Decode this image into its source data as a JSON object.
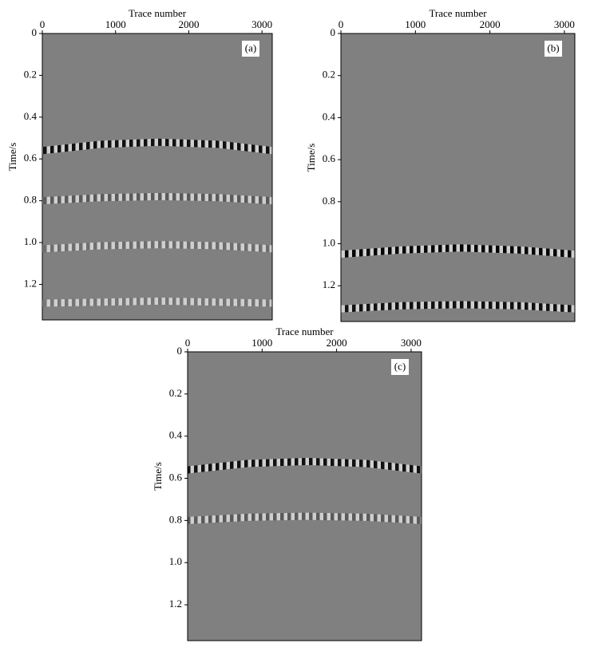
{
  "chart_data": [
    {
      "type": "seismic",
      "panel_label": "(a)",
      "xlabel": "Trace number",
      "ylabel": "Time/s",
      "xlim": [
        0,
        3140
      ],
      "xticks": [
        0,
        1000,
        2000,
        3000
      ],
      "ylim": [
        0,
        1.37
      ],
      "yticks": [
        0,
        0.2,
        0.4,
        0.6,
        0.8,
        {
          "value": 1,
          "label": "1.0"
        },
        1.2
      ],
      "series": [
        {
          "color": "#111111",
          "x": [
            0,
            800,
            1600,
            2400,
            3140
          ],
          "values": [
            0.56,
            0.53,
            0.52,
            0.53,
            0.56
          ]
        },
        {
          "color": "#5a5a5a",
          "x": [
            0,
            800,
            1600,
            2400,
            3140
          ],
          "values": [
            0.8,
            0.785,
            0.78,
            0.785,
            0.8
          ]
        },
        {
          "color": "#6e6e6e",
          "x": [
            0,
            800,
            1600,
            2400,
            3140
          ],
          "values": [
            1.03,
            1.015,
            1.01,
            1.015,
            1.03
          ]
        },
        {
          "color": "#767676",
          "x": [
            0,
            800,
            1600,
            2400,
            3140
          ],
          "values": [
            1.29,
            1.285,
            1.28,
            1.285,
            1.29
          ]
        }
      ]
    },
    {
      "type": "seismic",
      "panel_label": "(b)",
      "xlabel": "Trace number",
      "ylabel": "Time/s",
      "xlim": [
        0,
        3140
      ],
      "xticks": [
        0,
        1000,
        2000,
        3000
      ],
      "ylim": [
        0,
        1.37
      ],
      "yticks": [
        0,
        0.2,
        0.4,
        0.6,
        0.8,
        {
          "value": 1,
          "label": "1.0"
        },
        1.2
      ],
      "series": [
        {
          "color": "#050505",
          "x": [
            0,
            800,
            1600,
            2400,
            3140
          ],
          "values": [
            1.05,
            1.03,
            1.02,
            1.03,
            1.05
          ]
        },
        {
          "color": "#111111",
          "x": [
            0,
            800,
            1600,
            2400,
            3140
          ],
          "values": [
            1.31,
            1.295,
            1.29,
            1.295,
            1.31
          ]
        }
      ]
    },
    {
      "type": "seismic",
      "panel_label": "(c)",
      "xlabel": "Trace number",
      "ylabel": "Time/s",
      "xlim": [
        0,
        3140
      ],
      "xticks": [
        0,
        1000,
        2000,
        3000
      ],
      "ylim": [
        0,
        1.37
      ],
      "yticks": [
        0,
        0.2,
        0.4,
        0.6,
        0.8,
        {
          "value": 1,
          "label": "1.0"
        },
        1.2
      ],
      "series": [
        {
          "color": "#111111",
          "x": [
            0,
            800,
            1600,
            2400,
            3140
          ],
          "values": [
            0.56,
            0.53,
            0.52,
            0.53,
            0.56
          ]
        },
        {
          "color": "#5a5a5a",
          "x": [
            0,
            800,
            1600,
            2400,
            3140
          ],
          "values": [
            0.8,
            0.785,
            0.78,
            0.785,
            0.8
          ]
        }
      ]
    }
  ]
}
